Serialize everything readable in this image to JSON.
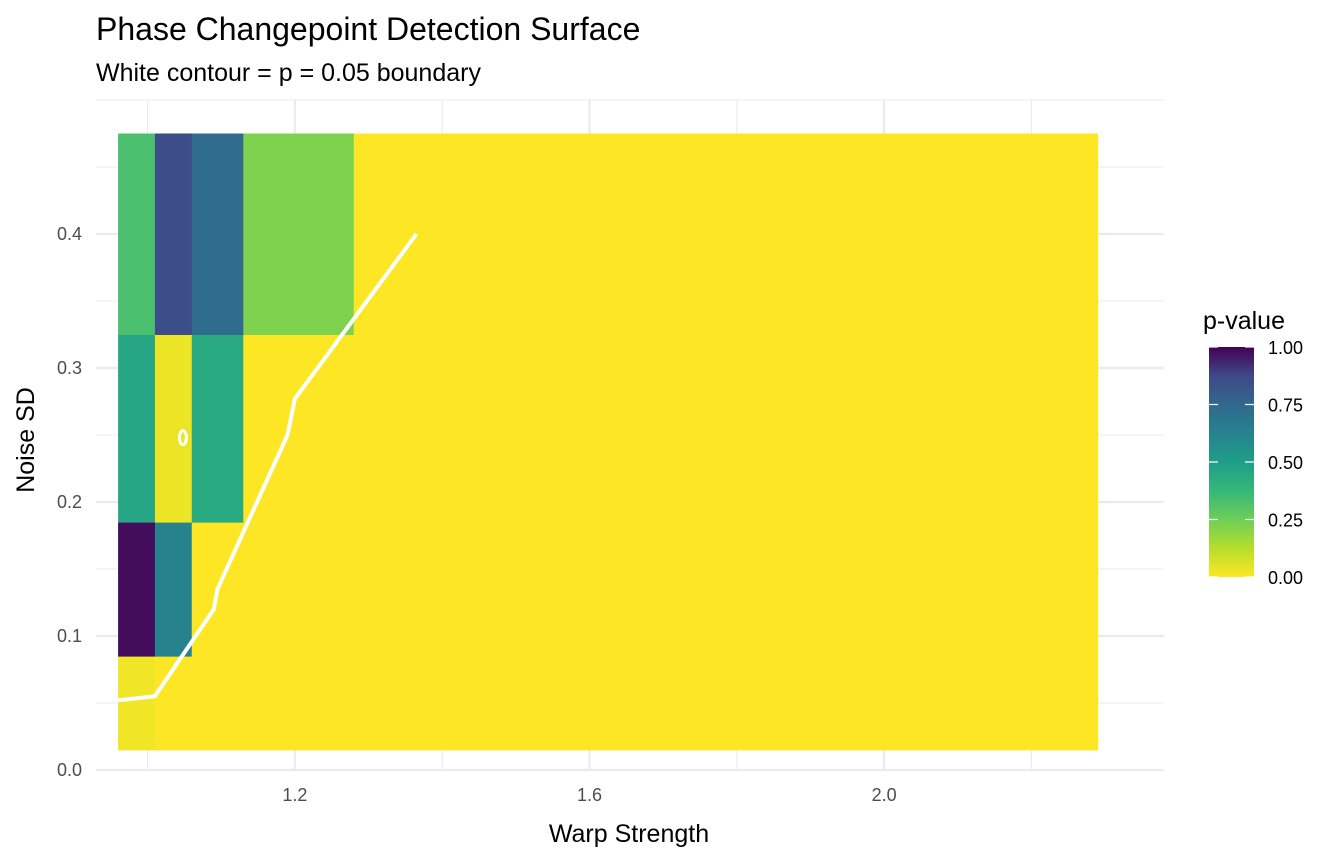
{
  "chart_data": {
    "type": "heatmap",
    "title": "Phase Changepoint Detection Surface",
    "subtitle": "White contour = p = 0.05 boundary",
    "xlabel": "Warp Strength",
    "ylabel": "Noise SD",
    "xlim": [
      0.93,
      2.38
    ],
    "ylim": [
      0.0,
      0.5
    ],
    "x_ticks": [
      "1.2",
      "1.6",
      "2.0"
    ],
    "x_tick_values": [
      1.2,
      1.6,
      2.0
    ],
    "y_ticks": [
      "0.0",
      "0.1",
      "0.2",
      "0.3",
      "0.4"
    ],
    "y_tick_values": [
      0.0,
      0.1,
      0.2,
      0.3,
      0.4
    ],
    "grid": true,
    "legend": {
      "title": "p-value",
      "position": "right",
      "labels": [
        "0.00",
        "0.25",
        "0.50",
        "0.75",
        "1.00"
      ],
      "values": [
        0.0,
        0.25,
        0.5,
        0.75,
        1.0
      ],
      "colormap": "viridis (reversed)"
    },
    "cells": [
      {
        "x0": 0.96,
        "x1": 1.01,
        "y0": 0.015,
        "y1": 0.085,
        "p": 0.02
      },
      {
        "x0": 1.01,
        "x1": 1.06,
        "y0": 0.015,
        "y1": 0.085,
        "p": 0.0
      },
      {
        "x0": 1.06,
        "x1": 1.13,
        "y0": 0.015,
        "y1": 0.085,
        "p": 0.0
      },
      {
        "x0": 1.13,
        "x1": 1.28,
        "y0": 0.015,
        "y1": 0.085,
        "p": 0.0
      },
      {
        "x0": 1.28,
        "x1": 2.29,
        "y0": 0.015,
        "y1": 0.085,
        "p": 0.0
      },
      {
        "x0": 0.96,
        "x1": 1.01,
        "y0": 0.085,
        "y1": 0.185,
        "p": 0.98
      },
      {
        "x0": 1.01,
        "x1": 1.06,
        "y0": 0.085,
        "y1": 0.185,
        "p": 0.62
      },
      {
        "x0": 1.06,
        "x1": 1.13,
        "y0": 0.085,
        "y1": 0.185,
        "p": 0.0
      },
      {
        "x0": 1.13,
        "x1": 1.28,
        "y0": 0.085,
        "y1": 0.185,
        "p": 0.0
      },
      {
        "x0": 1.28,
        "x1": 2.29,
        "y0": 0.085,
        "y1": 0.185,
        "p": 0.0
      },
      {
        "x0": 0.96,
        "x1": 1.01,
        "y0": 0.185,
        "y1": 0.325,
        "p": 0.46
      },
      {
        "x0": 1.01,
        "x1": 1.06,
        "y0": 0.185,
        "y1": 0.325,
        "p": 0.03
      },
      {
        "x0": 1.06,
        "x1": 1.13,
        "y0": 0.185,
        "y1": 0.325,
        "p": 0.44
      },
      {
        "x0": 1.13,
        "x1": 1.28,
        "y0": 0.185,
        "y1": 0.325,
        "p": 0.0
      },
      {
        "x0": 1.28,
        "x1": 2.29,
        "y0": 0.185,
        "y1": 0.325,
        "p": 0.0
      },
      {
        "x0": 0.96,
        "x1": 1.01,
        "y0": 0.325,
        "y1": 0.475,
        "p": 0.33
      },
      {
        "x0": 1.01,
        "x1": 1.06,
        "y0": 0.325,
        "y1": 0.475,
        "p": 0.86
      },
      {
        "x0": 1.06,
        "x1": 1.13,
        "y0": 0.325,
        "y1": 0.475,
        "p": 0.73
      },
      {
        "x0": 1.13,
        "x1": 1.28,
        "y0": 0.325,
        "y1": 0.475,
        "p": 0.22
      },
      {
        "x0": 1.28,
        "x1": 2.29,
        "y0": 0.325,
        "y1": 0.475,
        "p": 0.0
      }
    ],
    "contour_p": 0.05,
    "contour_line": [
      {
        "x": 0.96,
        "y": 0.052
      },
      {
        "x": 1.01,
        "y": 0.055
      },
      {
        "x": 1.09,
        "y": 0.12
      },
      {
        "x": 1.095,
        "y": 0.135
      },
      {
        "x": 1.19,
        "y": 0.25
      },
      {
        "x": 1.2,
        "y": 0.277
      },
      {
        "x": 1.365,
        "y": 0.4
      }
    ],
    "contour_island": {
      "x": 1.048,
      "y": 0.248
    }
  }
}
